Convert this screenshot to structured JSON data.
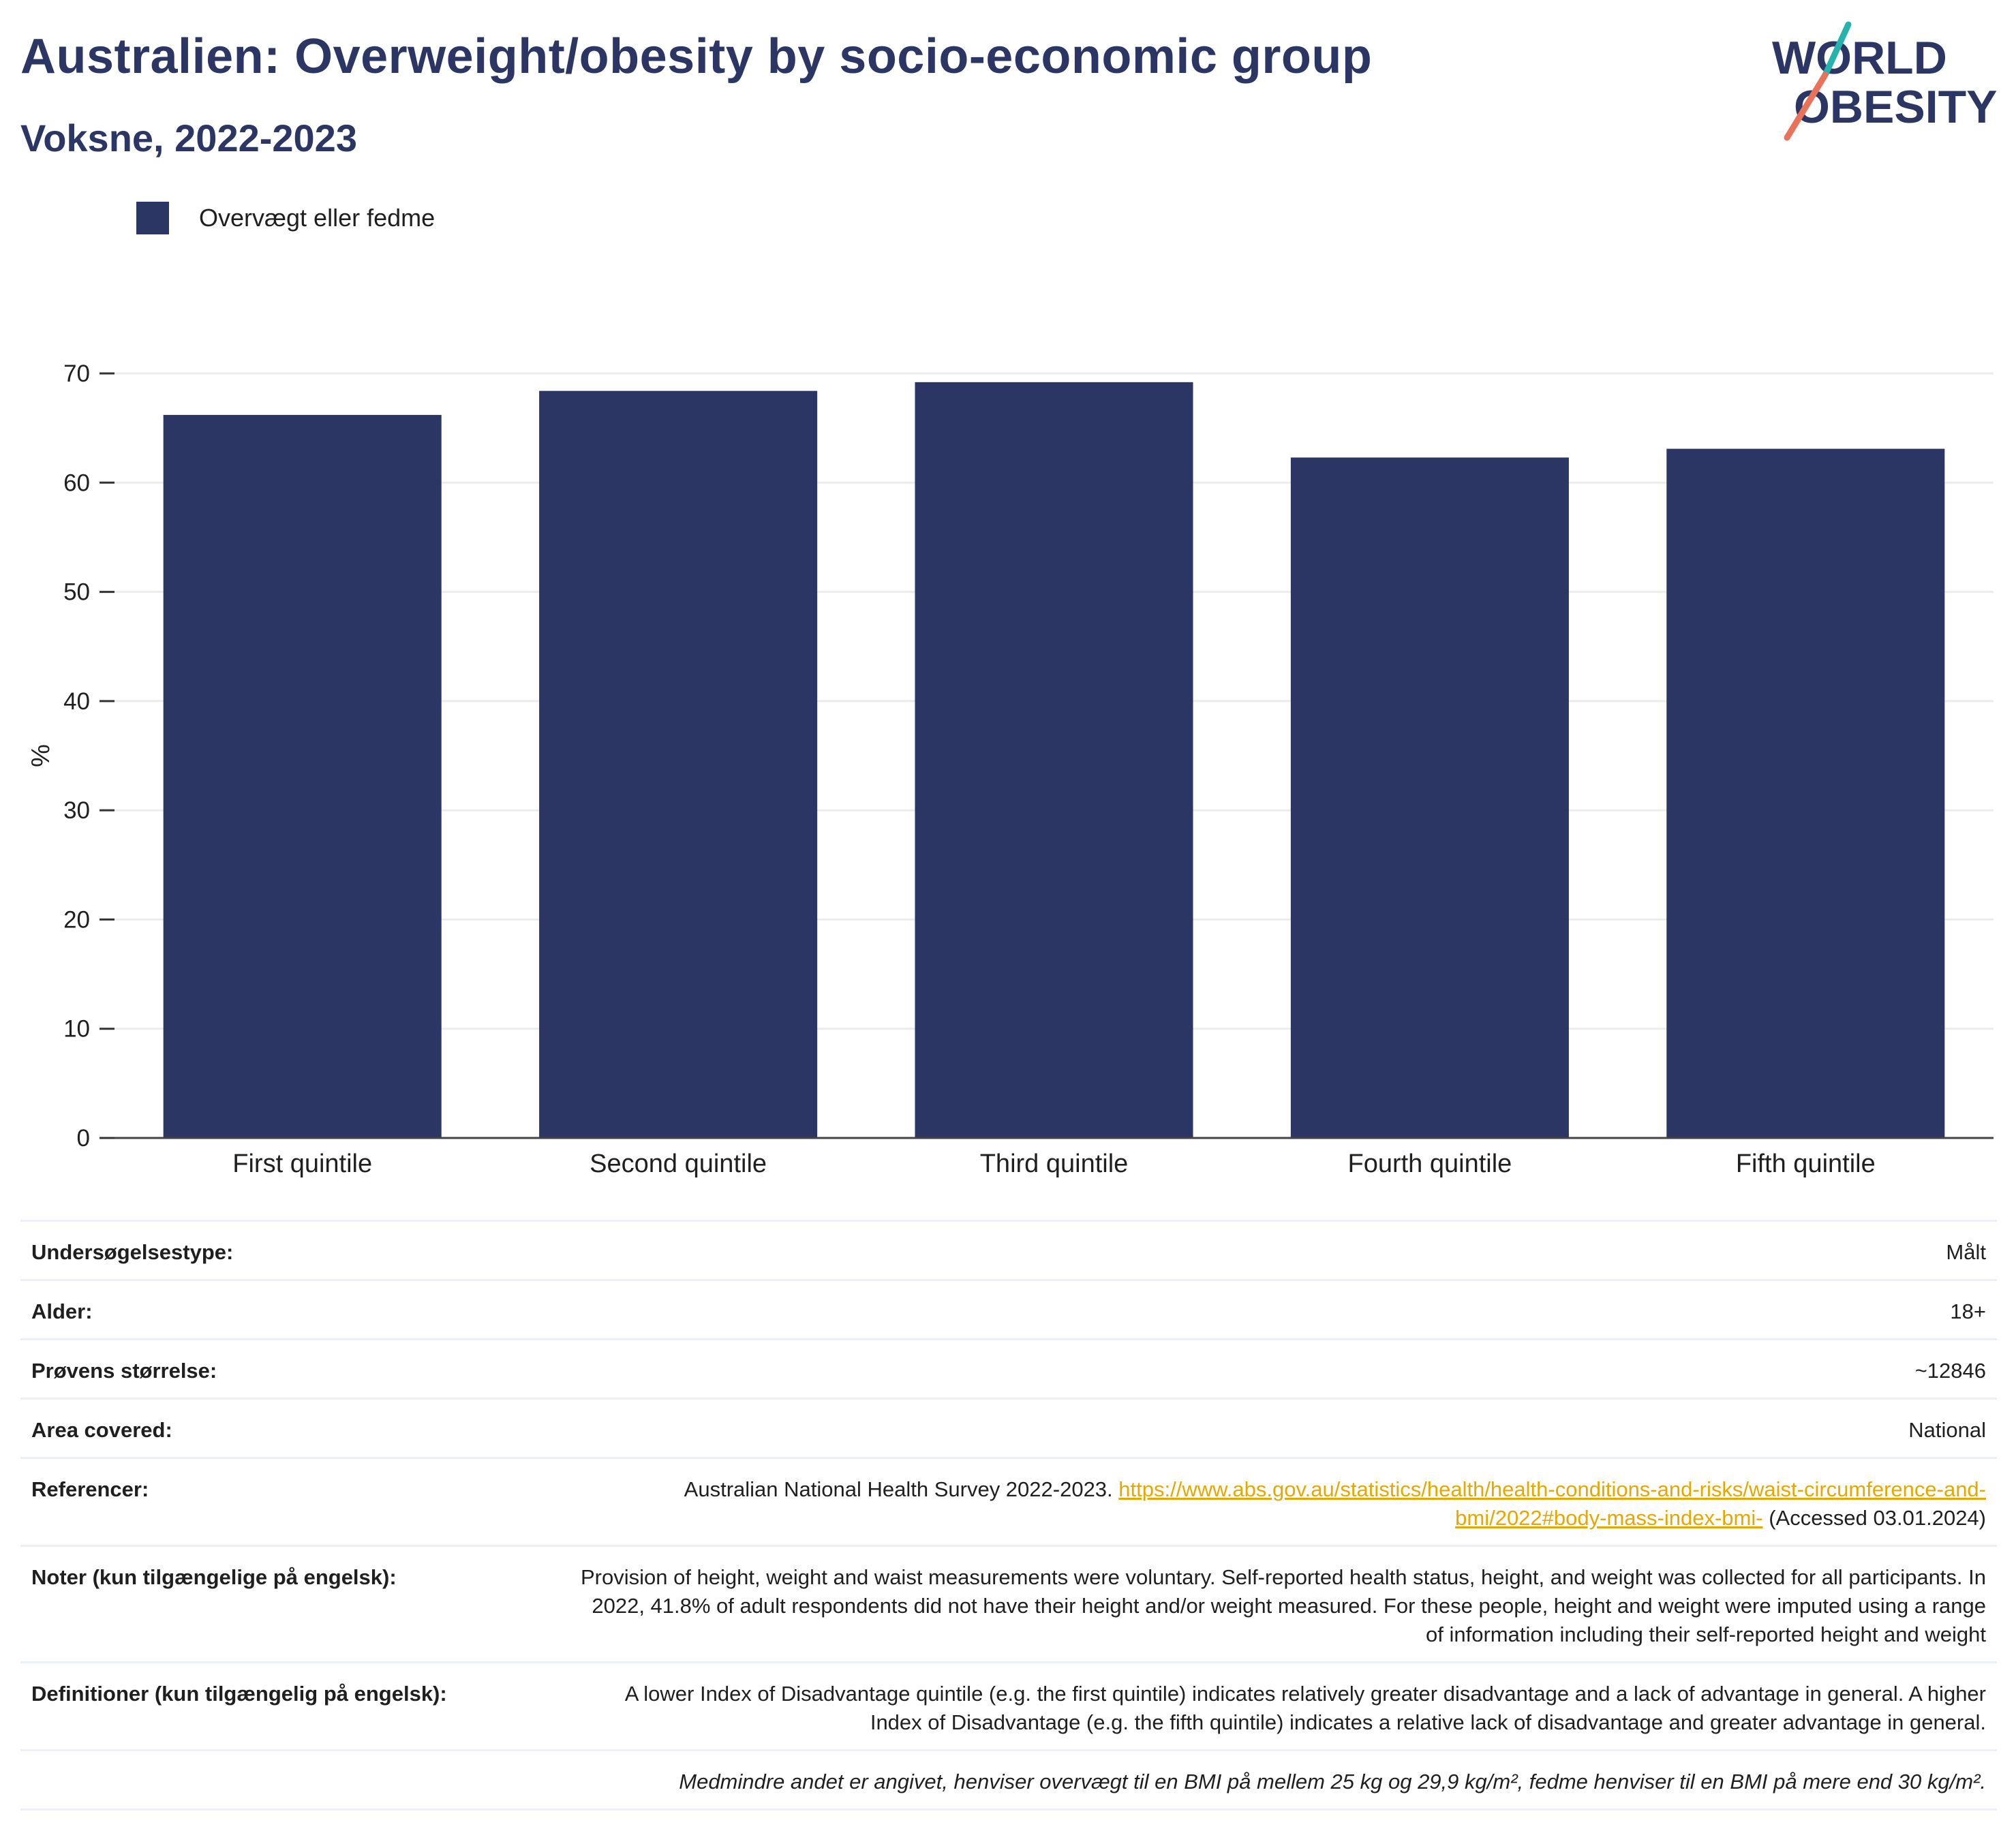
{
  "header": {
    "title": "Australien: Overweight/obesity by socio-economic group",
    "subtitle": "Voksne, 2022-2023",
    "logo_text_line1": "WORLD",
    "logo_text_line2": "OBESITY"
  },
  "colors": {
    "bar": "#2b3664",
    "title": "#2b3664",
    "link": "#e6a700",
    "logo_slash_top": "#27b3ad",
    "logo_slash_bottom": "#e8735a"
  },
  "legend": {
    "items": [
      {
        "label": "Overvægt eller fedme",
        "color": "#2b3664"
      }
    ]
  },
  "chart_data": {
    "type": "bar",
    "categories": [
      "First quintile",
      "Second quintile",
      "Third quintile",
      "Fourth quintile",
      "Fifth quintile"
    ],
    "series": [
      {
        "name": "Overvægt eller fedme",
        "values": [
          66.2,
          68.4,
          69.2,
          62.3,
          63.1
        ]
      }
    ],
    "ylabel": "%",
    "xlabel": "",
    "ylim": [
      0,
      70
    ],
    "yticks": [
      0,
      10,
      20,
      30,
      40,
      50,
      60,
      70
    ],
    "grid": true,
    "legend_position": "top-left"
  },
  "meta": {
    "survey_type": {
      "label": "Undersøgelsestype:",
      "value": "Målt"
    },
    "age": {
      "label": "Alder:",
      "value": "18+"
    },
    "sample_size": {
      "label": "Prøvens størrelse:",
      "value": "~12846"
    },
    "area": {
      "label": "Area covered:",
      "value": "National"
    },
    "references": {
      "label": "Referencer:",
      "text": "Australian National Health Survey 2022-2023.",
      "url": "https://www.abs.gov.au/statistics/health/health-conditions-and-risks/waist-circumference-and-bmi/2022#body-mass-index-bmi-",
      "accessed": "(Accessed 03.01.2024)"
    },
    "notes": {
      "label": "Noter (kun tilgængelige på engelsk):",
      "value": "Provision of height, weight and waist measurements were voluntary. Self-reported health status, height, and weight was collected for all participants. In 2022, 41.8% of adult respondents did not have their height and/or weight measured. For these people, height and weight were imputed using a range of information including their self-reported height and weight"
    },
    "definitions": {
      "label": "Definitioner (kun tilgængelig på engelsk):",
      "value": "A lower Index of Disadvantage quintile (e.g. the first quintile) indicates relatively greater disadvantage and a lack of advantage in general. A higher Index of Disadvantage (e.g. the fifth quintile) indicates a relative lack of disadvantage and greater advantage in general."
    },
    "footnote": "Medmindre andet er angivet, henviser overvægt til en BMI på mellem 25 kg og 29,9 kg/m², fedme henviser til en BMI på mere end 30 kg/m²."
  }
}
